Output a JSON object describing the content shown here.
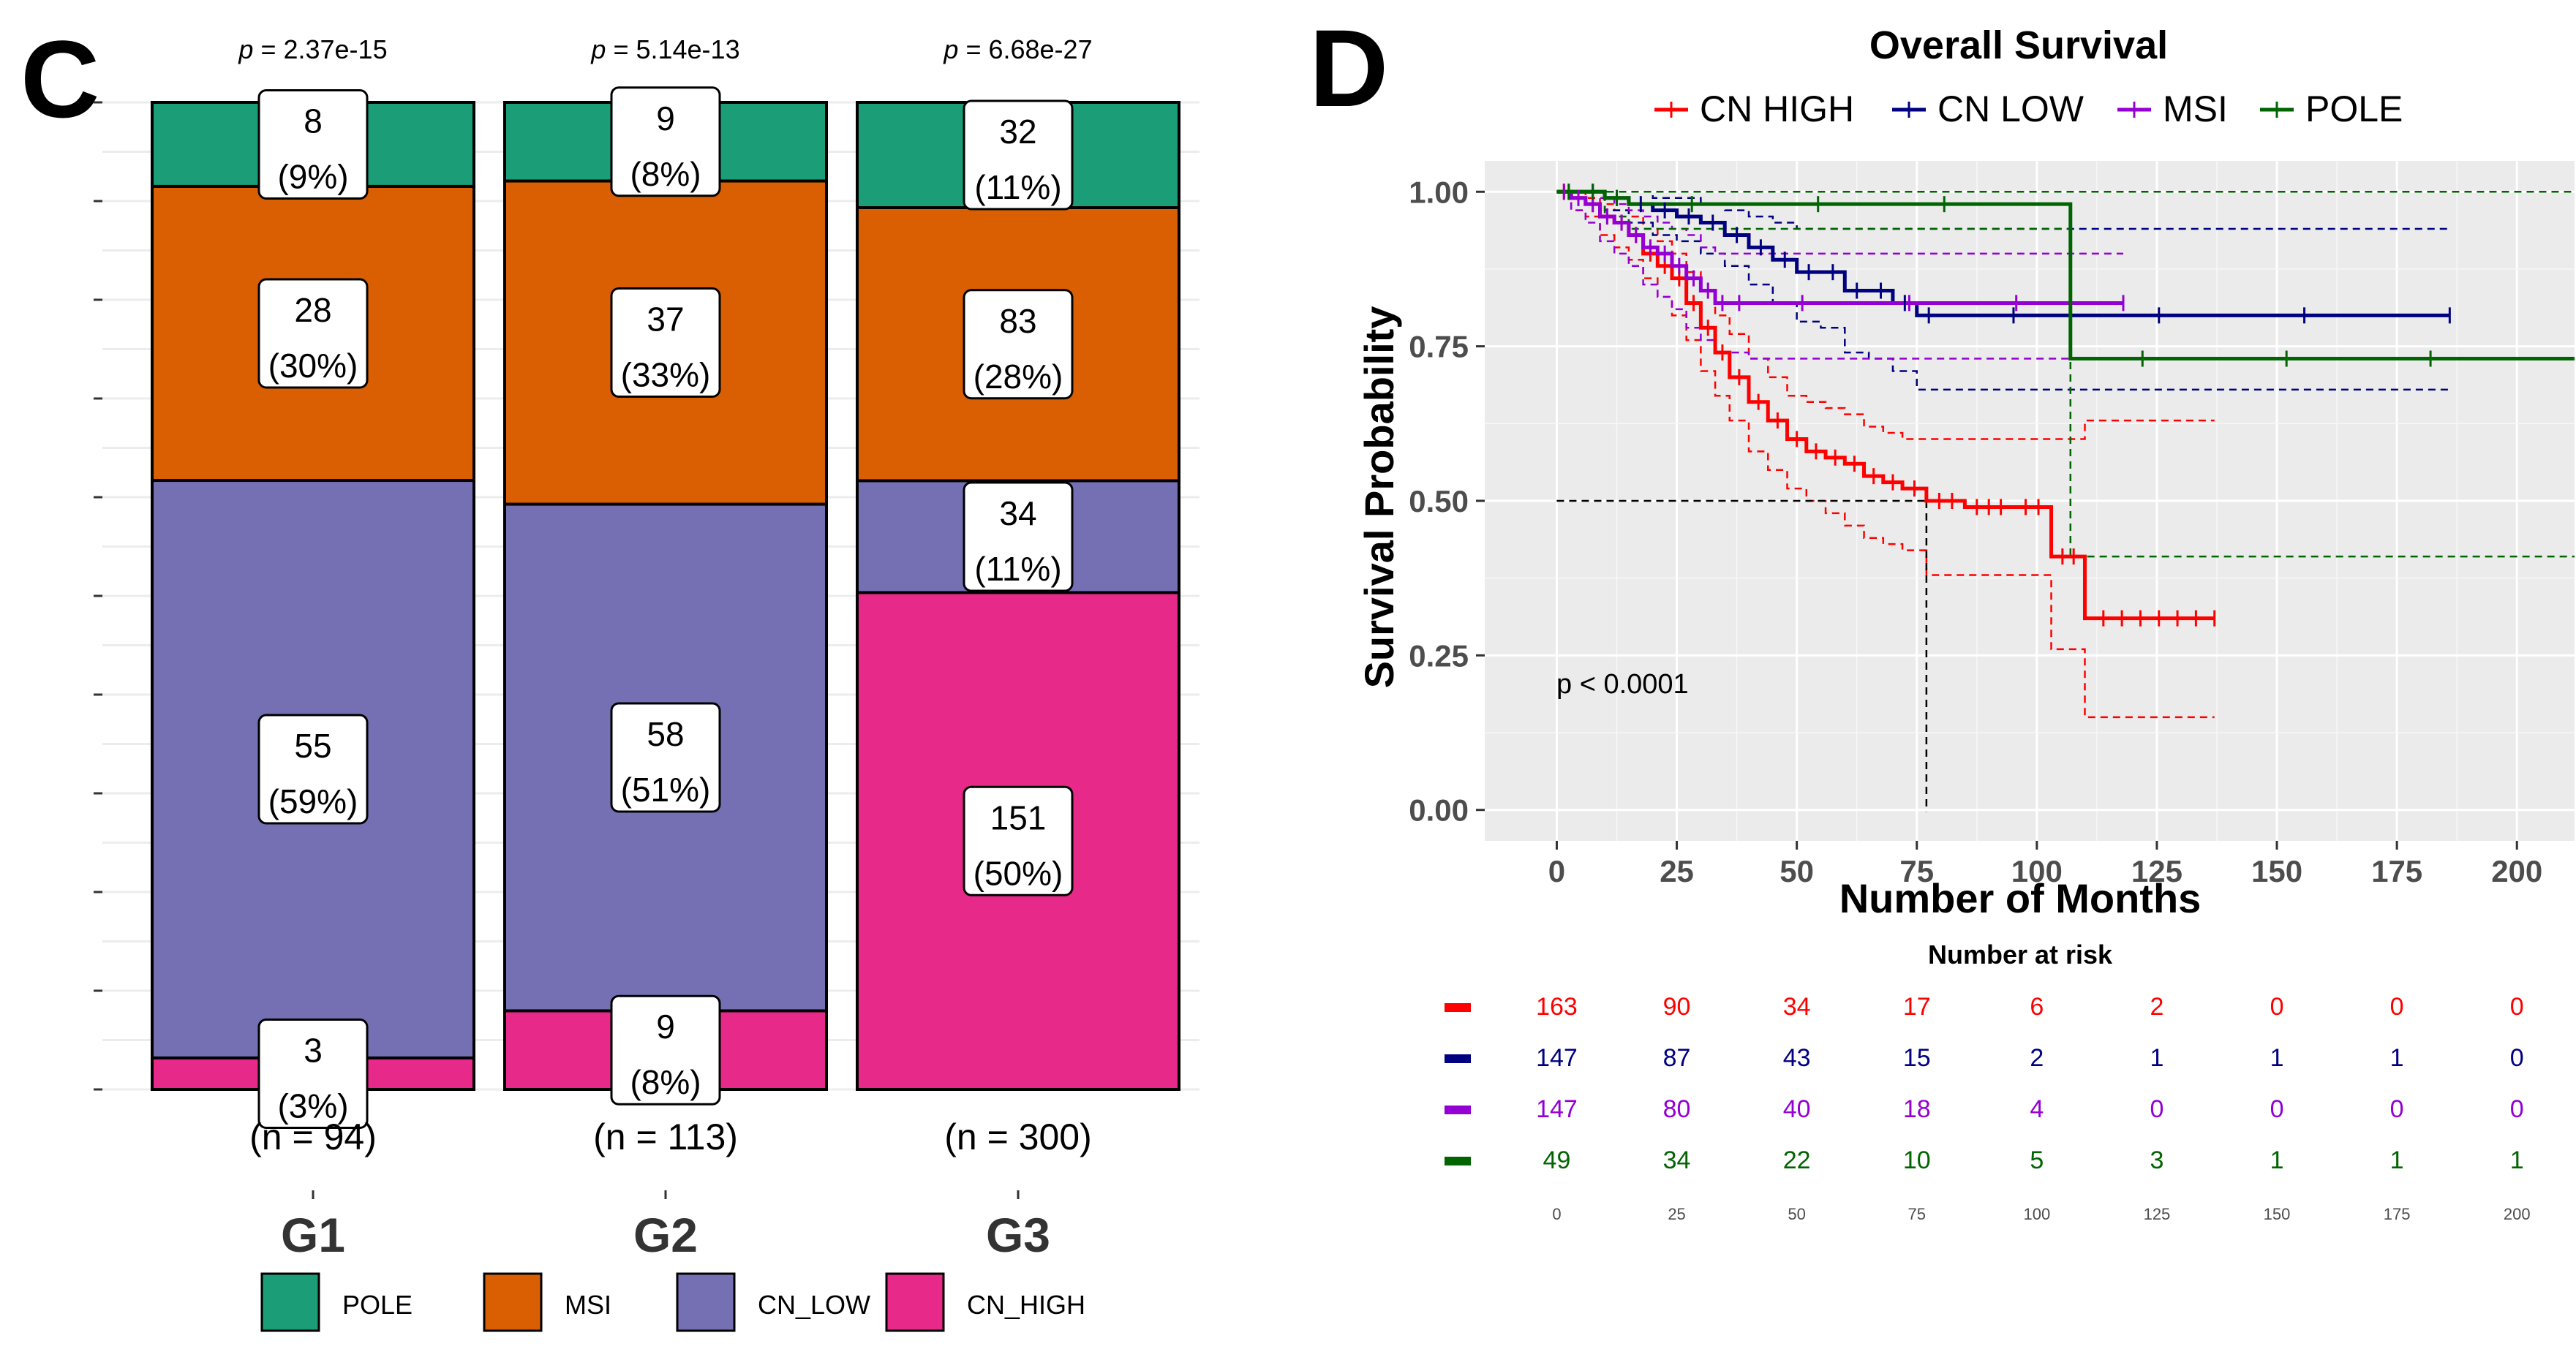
{
  "colors": {
    "pole": "#1b9e77",
    "msi": "#d95f02",
    "cn_low": "#7570b3",
    "cn_high": "#e7298a",
    "km_cn_high": "#ff0000",
    "km_cn_low": "#000080",
    "km_msi": "#9400d3",
    "km_pole": "#006400",
    "panel_bg": "#ebebeb"
  },
  "chart_data": [
    {
      "type": "bar",
      "subtype": "stacked-percent",
      "panel_label": "C",
      "categories": [
        "G1",
        "G2",
        "G3"
      ],
      "p_prefix": "p",
      "pvalues": [
        "= 2.37e-15",
        "= 5.14e-13",
        "= 6.68e-27"
      ],
      "n_labels": [
        "(n = 94)",
        "(n = 113)",
        "(n = 300)"
      ],
      "stack_order": [
        "CN_HIGH",
        "CN_LOW",
        "MSI",
        "POLE"
      ],
      "series": [
        {
          "name": "POLE",
          "color_key": "pole",
          "values": [
            8,
            9,
            32
          ],
          "labels": [
            "(9%)",
            "(8%)",
            "(11%)"
          ]
        },
        {
          "name": "MSI",
          "color_key": "msi",
          "values": [
            28,
            37,
            83
          ],
          "labels": [
            "(30%)",
            "(33%)",
            "(28%)"
          ]
        },
        {
          "name": "CN_LOW",
          "color_key": "cn_low",
          "values": [
            55,
            58,
            34
          ],
          "labels": [
            "(59%)",
            "(51%)",
            "(11%)"
          ]
        },
        {
          "name": "CN_HIGH",
          "color_key": "cn_high",
          "values": [
            3,
            9,
            151
          ],
          "labels": [
            "(3%)",
            "(8%)",
            "(50%)"
          ]
        }
      ],
      "legend": [
        "POLE",
        "MSI",
        "CN_LOW",
        "CN_HIGH"
      ],
      "ylim": [
        0,
        1
      ],
      "grid": true
    },
    {
      "type": "line",
      "subtype": "kaplan-meier",
      "panel_label": "D",
      "title": "Overall Survival",
      "xlabel": "Number of Months",
      "ylabel": "Survival Probability",
      "xlim": [
        -15,
        212
      ],
      "ylim": [
        -0.05,
        1.05
      ],
      "xticks": [
        0,
        25,
        50,
        75,
        100,
        125,
        150,
        175,
        200
      ],
      "yticks": [
        0,
        0.25,
        0.5,
        0.75,
        1
      ],
      "ytick_labels": [
        "0.00",
        "0.25",
        "0.50",
        "0.75",
        "1.00"
      ],
      "pvalue_text": "p < 0.0001",
      "median_survival": {
        "x": 77,
        "y": 0.5
      },
      "series": [
        {
          "name": "CN HIGH",
          "color_key": "km_cn_high",
          "x": [
            0,
            3,
            6,
            9,
            12,
            15,
            18,
            21,
            24,
            27,
            30,
            33,
            36,
            40,
            44,
            48,
            52,
            56,
            60,
            64,
            68,
            72,
            77,
            85,
            95,
            103,
            110,
            137
          ],
          "y": [
            1.0,
            0.99,
            0.98,
            0.96,
            0.95,
            0.93,
            0.9,
            0.88,
            0.86,
            0.82,
            0.78,
            0.74,
            0.7,
            0.66,
            0.63,
            0.6,
            0.58,
            0.57,
            0.56,
            0.54,
            0.53,
            0.52,
            0.5,
            0.49,
            0.49,
            0.41,
            0.31,
            0.31
          ],
          "upper": [
            1.0,
            1.0,
            0.99,
            0.98,
            0.97,
            0.96,
            0.94,
            0.92,
            0.9,
            0.87,
            0.84,
            0.8,
            0.77,
            0.73,
            0.7,
            0.67,
            0.66,
            0.65,
            0.64,
            0.62,
            0.61,
            0.6,
            0.6,
            0.6,
            0.6,
            0.6,
            0.63,
            0.63
          ],
          "lower": [
            1.0,
            0.97,
            0.96,
            0.93,
            0.91,
            0.89,
            0.86,
            0.83,
            0.8,
            0.76,
            0.71,
            0.67,
            0.63,
            0.58,
            0.55,
            0.52,
            0.5,
            0.48,
            0.46,
            0.44,
            0.43,
            0.42,
            0.38,
            0.38,
            0.38,
            0.26,
            0.15,
            0.15
          ]
        },
        {
          "name": "CN LOW",
          "color_key": "km_cn_low",
          "x": [
            0,
            5,
            10,
            15,
            20,
            25,
            30,
            35,
            40,
            45,
            50,
            55,
            60,
            65,
            70,
            75,
            80,
            186
          ],
          "y": [
            1.0,
            1.0,
            0.99,
            0.98,
            0.97,
            0.96,
            0.95,
            0.93,
            0.91,
            0.89,
            0.87,
            0.87,
            0.84,
            0.84,
            0.82,
            0.8,
            0.8,
            0.8
          ],
          "upper": [
            1.0,
            1.0,
            1.0,
            1.0,
            0.99,
            0.99,
            0.98,
            0.97,
            0.96,
            0.95,
            0.94,
            0.94,
            0.94,
            0.94,
            0.94,
            0.94,
            0.94,
            0.94
          ],
          "lower": [
            1.0,
            1.0,
            0.97,
            0.95,
            0.93,
            0.92,
            0.9,
            0.88,
            0.85,
            0.82,
            0.79,
            0.78,
            0.74,
            0.73,
            0.71,
            0.68,
            0.68,
            0.68
          ]
        },
        {
          "name": "MSI",
          "color_key": "km_msi",
          "x": [
            0,
            3,
            6,
            9,
            12,
            15,
            18,
            21,
            24,
            27,
            30,
            33,
            36,
            40,
            118
          ],
          "y": [
            1.0,
            0.99,
            0.98,
            0.96,
            0.95,
            0.93,
            0.91,
            0.9,
            0.88,
            0.86,
            0.84,
            0.82,
            0.82,
            0.82,
            0.82
          ],
          "upper": [
            1.0,
            1.0,
            1.0,
            0.99,
            0.98,
            0.97,
            0.96,
            0.95,
            0.94,
            0.93,
            0.91,
            0.9,
            0.9,
            0.9,
            0.9
          ],
          "lower": [
            1.0,
            0.97,
            0.95,
            0.92,
            0.9,
            0.88,
            0.85,
            0.83,
            0.81,
            0.78,
            0.76,
            0.74,
            0.74,
            0.73,
            0.73
          ]
        },
        {
          "name": "POLE",
          "color_key": "km_pole",
          "x": [
            0,
            5,
            10,
            15,
            107,
            212
          ],
          "y": [
            1.0,
            1.0,
            0.99,
            0.98,
            0.73,
            0.73
          ],
          "upper": [
            1.0,
            1.0,
            1.0,
            1.0,
            1.0,
            1.0
          ],
          "lower": [
            1.0,
            1.0,
            0.96,
            0.94,
            0.41,
            0.41
          ]
        }
      ],
      "risk_table": {
        "title": "Number at risk",
        "times": [
          0,
          25,
          50,
          75,
          100,
          125,
          150,
          175,
          200
        ],
        "rows": [
          {
            "color_key": "km_cn_high",
            "values": [
              163,
              90,
              34,
              17,
              6,
              2,
              0,
              0,
              0
            ]
          },
          {
            "color_key": "km_cn_low",
            "values": [
              147,
              87,
              43,
              15,
              2,
              1,
              1,
              1,
              0
            ]
          },
          {
            "color_key": "km_msi",
            "values": [
              147,
              80,
              40,
              18,
              4,
              0,
              0,
              0,
              0
            ]
          },
          {
            "color_key": "km_pole",
            "values": [
              49,
              34,
              22,
              10,
              5,
              3,
              1,
              1,
              1
            ]
          }
        ]
      }
    }
  ]
}
